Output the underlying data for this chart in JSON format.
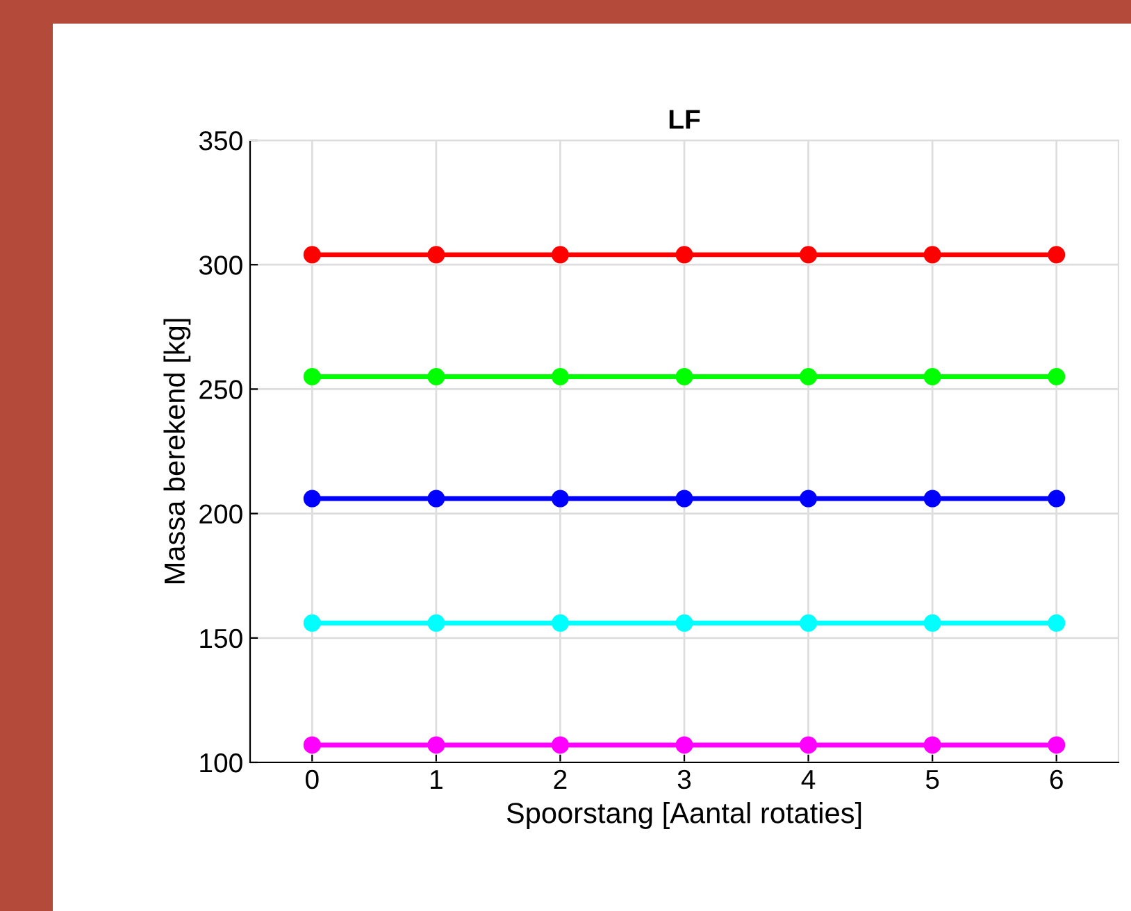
{
  "chart_data": {
    "type": "line",
    "title": "LF",
    "xlabel": "Spoorstang [Aantal rotaties]",
    "ylabel": "Massa berekend [kg]",
    "x": [
      0,
      1,
      2,
      3,
      4,
      5,
      6
    ],
    "series": [
      {
        "color": "#ff0000",
        "values": [
          304,
          304,
          304,
          304,
          304,
          304,
          304
        ]
      },
      {
        "color": "#00ff00",
        "values": [
          255,
          255,
          255,
          255,
          255,
          255,
          255
        ]
      },
      {
        "color": "#0000ff",
        "values": [
          206,
          206,
          206,
          206,
          206,
          206,
          206
        ]
      },
      {
        "color": "#00ffff",
        "values": [
          156,
          156,
          156,
          156,
          156,
          156,
          156
        ]
      },
      {
        "color": "#ff00ff",
        "values": [
          107,
          107,
          107,
          107,
          107,
          107,
          107
        ]
      }
    ],
    "xlim": [
      -0.5,
      6.5
    ],
    "xticks": [
      0,
      1,
      2,
      3,
      4,
      5,
      6
    ],
    "ylim": [
      100,
      350
    ],
    "yticks": [
      100,
      150,
      200,
      250,
      300,
      350
    ],
    "grid": true,
    "marker": "circle",
    "line_style": "solid",
    "legend": false
  }
}
